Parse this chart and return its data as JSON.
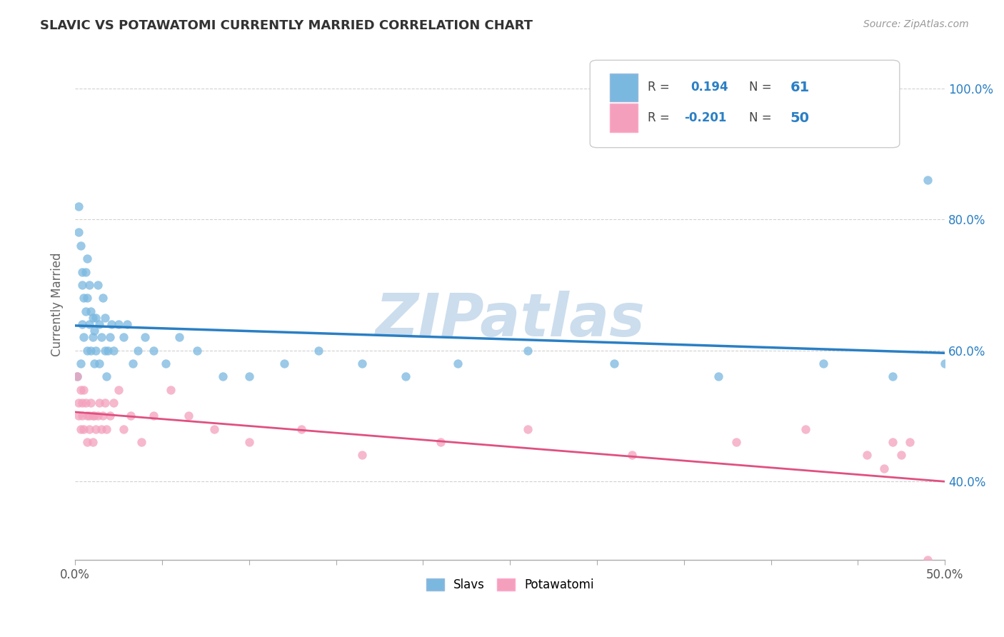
{
  "title": "SLAVIC VS POTAWATOMI CURRENTLY MARRIED CORRELATION CHART",
  "source_text": "Source: ZipAtlas.com",
  "ylabel": "Currently Married",
  "ylabel_right_vals": [
    0.4,
    0.6,
    0.8,
    1.0
  ],
  "xmin": 0.0,
  "xmax": 0.5,
  "ymin": 0.28,
  "ymax": 1.06,
  "r_slavs": 0.194,
  "n_slavs": 61,
  "r_potawatomi": -0.201,
  "n_potawatomi": 50,
  "color_slavs": "#7ab8e0",
  "color_potawatomi": "#f4a0bc",
  "color_slavs_line": "#2a7fc4",
  "color_potawatomi_line": "#e05080",
  "watermark_color": "#ccdded",
  "background_color": "#ffffff",
  "slavs_x": [
    0.001,
    0.002,
    0.002,
    0.003,
    0.003,
    0.004,
    0.004,
    0.004,
    0.005,
    0.005,
    0.006,
    0.006,
    0.007,
    0.007,
    0.007,
    0.008,
    0.008,
    0.009,
    0.009,
    0.01,
    0.01,
    0.011,
    0.011,
    0.012,
    0.012,
    0.013,
    0.014,
    0.014,
    0.015,
    0.016,
    0.017,
    0.017,
    0.018,
    0.019,
    0.02,
    0.021,
    0.022,
    0.025,
    0.028,
    0.03,
    0.033,
    0.036,
    0.04,
    0.045,
    0.052,
    0.06,
    0.07,
    0.085,
    0.1,
    0.12,
    0.14,
    0.165,
    0.19,
    0.22,
    0.26,
    0.31,
    0.37,
    0.43,
    0.47,
    0.49,
    0.5
  ],
  "slavs_y": [
    0.56,
    0.78,
    0.82,
    0.58,
    0.76,
    0.7,
    0.72,
    0.64,
    0.68,
    0.62,
    0.66,
    0.72,
    0.6,
    0.74,
    0.68,
    0.7,
    0.64,
    0.66,
    0.6,
    0.65,
    0.62,
    0.63,
    0.58,
    0.65,
    0.6,
    0.7,
    0.64,
    0.58,
    0.62,
    0.68,
    0.65,
    0.6,
    0.56,
    0.6,
    0.62,
    0.64,
    0.6,
    0.64,
    0.62,
    0.64,
    0.58,
    0.6,
    0.62,
    0.6,
    0.58,
    0.62,
    0.6,
    0.56,
    0.56,
    0.58,
    0.6,
    0.58,
    0.56,
    0.58,
    0.6,
    0.58,
    0.56,
    0.58,
    0.56,
    0.86,
    0.58
  ],
  "potawatomi_x": [
    0.001,
    0.002,
    0.002,
    0.003,
    0.003,
    0.004,
    0.004,
    0.005,
    0.005,
    0.006,
    0.007,
    0.007,
    0.008,
    0.008,
    0.009,
    0.01,
    0.01,
    0.011,
    0.012,
    0.013,
    0.014,
    0.015,
    0.016,
    0.017,
    0.018,
    0.02,
    0.022,
    0.025,
    0.028,
    0.032,
    0.038,
    0.045,
    0.055,
    0.065,
    0.08,
    0.1,
    0.13,
    0.165,
    0.21,
    0.26,
    0.32,
    0.38,
    0.42,
    0.455,
    0.465,
    0.47,
    0.475,
    0.48,
    0.485,
    0.49
  ],
  "potawatomi_y": [
    0.56,
    0.5,
    0.52,
    0.48,
    0.54,
    0.5,
    0.52,
    0.48,
    0.54,
    0.52,
    0.5,
    0.46,
    0.5,
    0.48,
    0.52,
    0.5,
    0.46,
    0.5,
    0.48,
    0.5,
    0.52,
    0.48,
    0.5,
    0.52,
    0.48,
    0.5,
    0.52,
    0.54,
    0.48,
    0.5,
    0.46,
    0.5,
    0.54,
    0.5,
    0.48,
    0.46,
    0.48,
    0.44,
    0.46,
    0.48,
    0.44,
    0.46,
    0.48,
    0.44,
    0.42,
    0.46,
    0.44,
    0.46,
    0.26,
    0.28
  ]
}
